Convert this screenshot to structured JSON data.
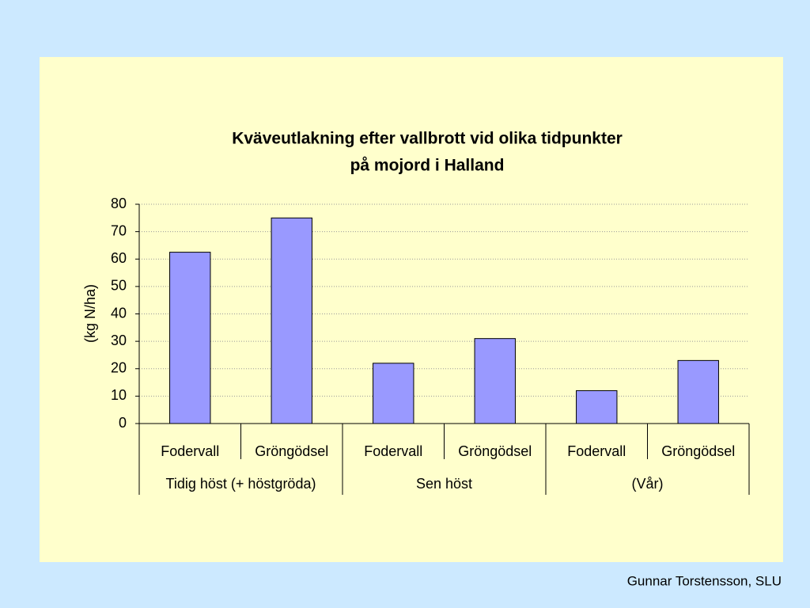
{
  "chart_data": {
    "type": "bar",
    "title": [
      "Kväveutlakning efter vallbrott vid olika tidpunkter",
      "på mojord i Halland"
    ],
    "ylabel": "(kg N/ha)",
    "groups": [
      {
        "name": "Tidig höst (+ höstgröda)",
        "categories": [
          "Fodervall",
          "Gröngödsel"
        ],
        "values": [
          62.5,
          75
        ]
      },
      {
        "name": "Sen höst",
        "categories": [
          "Fodervall",
          "Gröngödsel"
        ],
        "values": [
          22,
          31
        ]
      },
      {
        "name": "(Vår)",
        "categories": [
          "Fodervall",
          "Gröngödsel"
        ],
        "values": [
          12,
          23
        ]
      }
    ],
    "color": "#9999ff",
    "ylim": [
      0,
      80
    ],
    "yticks": [
      0,
      10,
      20,
      30,
      40,
      50,
      60,
      70,
      80
    ],
    "grid": true
  },
  "footer": "Gunnar Torstensson, SLU"
}
